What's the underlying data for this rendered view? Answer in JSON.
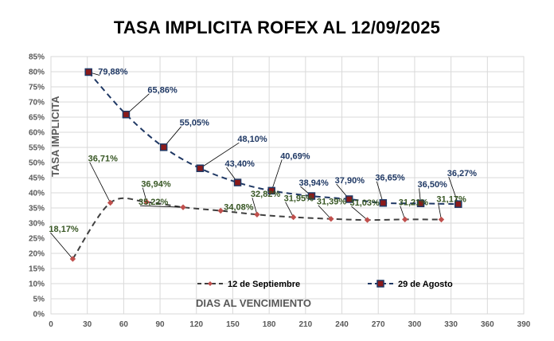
{
  "chart_data": {
    "type": "line",
    "title": "TASA IMPLICITA ROFEX AL 12/09/2025",
    "xlabel": "DIAS AL VENCIMIENTO",
    "ylabel": "TASA IMPLICITA",
    "xlim": [
      0,
      390
    ],
    "ylim": [
      0,
      85
    ],
    "x_ticks": [
      "0",
      "30",
      "60",
      "90",
      "120",
      "150",
      "180",
      "210",
      "240",
      "270",
      "300",
      "330",
      "360",
      "390"
    ],
    "y_ticks": [
      "0%",
      "5%",
      "10%",
      "15%",
      "20%",
      "25%",
      "30%",
      "35%",
      "40%",
      "45%",
      "50%",
      "55%",
      "60%",
      "65%",
      "70%",
      "75%",
      "80%",
      "85%"
    ],
    "grid": true,
    "legend_position": "bottom-center",
    "series": [
      {
        "name": "12 de Septiembre",
        "color": "#404040",
        "marker_color": "#c0504d",
        "label_color": "#375623",
        "line_style": "dashed",
        "x": [
          18,
          49,
          79,
          109,
          140,
          170,
          200,
          231,
          261,
          292,
          322
        ],
        "y": [
          18.17,
          36.71,
          36.94,
          35.22,
          34.08,
          32.82,
          31.95,
          31.39,
          31.03,
          31.21,
          31.17
        ],
        "labels": [
          "18,17%",
          "36,71%",
          "36,94%",
          "35,22%",
          "34,08%",
          "32,82%",
          "31,95%",
          "31,39%",
          "31,03%",
          "31,21%",
          "31,17%"
        ]
      },
      {
        "name": "29 de Agosto",
        "color": "#1f3864",
        "marker_color": "#1f3864",
        "marker_fill": "#8b1a1a",
        "label_color": "#1f3864",
        "line_style": "dashed",
        "x": [
          31,
          62,
          93,
          123,
          154,
          182,
          215,
          246,
          274,
          305,
          336
        ],
        "y": [
          79.88,
          65.86,
          55.05,
          48.1,
          43.4,
          40.69,
          38.94,
          37.9,
          36.65,
          36.5,
          36.27
        ],
        "labels": [
          "79,88%",
          "65,86%",
          "55,05%",
          "48,10%",
          "43,40%",
          "40,69%",
          "38,94%",
          "37,90%",
          "36,65%",
          "36,50%",
          "36,27%"
        ]
      }
    ]
  }
}
